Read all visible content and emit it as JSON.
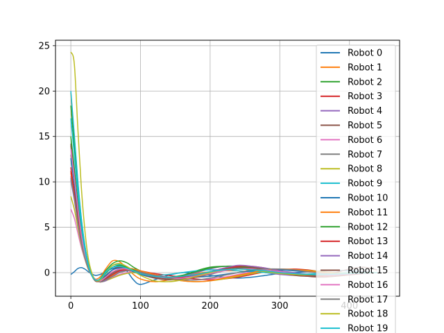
{
  "chart_data": {
    "type": "line",
    "title": "",
    "xlabel": "",
    "ylabel": "",
    "xlim": [
      -22,
      472
    ],
    "ylim": [
      -2.6,
      25.6
    ],
    "xticks": [
      0,
      100,
      200,
      300,
      400
    ],
    "yticks": [
      0,
      5,
      10,
      15,
      20,
      25
    ],
    "grid": true,
    "legend_position": "upper-right",
    "colors": [
      "#1f77b4",
      "#ff7f0e",
      "#2ca02c",
      "#d62728",
      "#9467bd",
      "#8c564b",
      "#e377c2",
      "#7f7f7f",
      "#bcbd22",
      "#17becf"
    ],
    "x": [
      0,
      5,
      10,
      15,
      20,
      25,
      30,
      35,
      40,
      45,
      50,
      60,
      70,
      80,
      90,
      100,
      120,
      140,
      160,
      180,
      200,
      220,
      240,
      260,
      280,
      300,
      320,
      340,
      360,
      380,
      400,
      420,
      440
    ],
    "series": [
      {
        "name": "Robot 0",
        "values": [
          -0.2,
          0.1,
          0.45,
          0.55,
          0.4,
          0.1,
          -0.15,
          -0.3,
          -0.25,
          -0.1,
          0.1,
          0.45,
          0.6,
          0.2,
          -0.8,
          -1.3,
          -0.8,
          -0.3,
          0.0,
          -0.1,
          -0.3,
          -0.5,
          -0.6,
          -0.5,
          -0.3,
          -0.1,
          0.0,
          0.1,
          0.2,
          0.25,
          0.2,
          0.1,
          0.0
        ]
      },
      {
        "name": "Robot 1",
        "values": [
          19.8,
          15.0,
          10.0,
          6.0,
          3.0,
          1.0,
          -0.3,
          -0.7,
          -0.6,
          -0.2,
          0.4,
          1.3,
          1.2,
          0.5,
          -0.2,
          -0.7,
          -1.0,
          -0.8,
          -0.4,
          -0.1,
          0.1,
          0.2,
          0.2,
          0.1,
          0.0,
          -0.1,
          -0.15,
          -0.2,
          -0.2,
          -0.15,
          -0.1,
          -0.05,
          0.0
        ]
      },
      {
        "name": "Robot 2",
        "values": [
          18.4,
          14.0,
          9.5,
          5.8,
          3.0,
          1.0,
          -0.2,
          -0.8,
          -0.8,
          -0.4,
          0.2,
          1.0,
          1.3,
          1.1,
          0.6,
          0.2,
          -0.3,
          -0.5,
          -0.3,
          0.2,
          0.6,
          0.7,
          0.6,
          0.4,
          0.2,
          0.0,
          -0.15,
          -0.25,
          -0.3,
          -0.25,
          -0.15,
          -0.05,
          0.0
        ]
      },
      {
        "name": "Robot 3",
        "values": [
          11.6,
          9.0,
          6.2,
          3.8,
          2.0,
          0.6,
          -0.3,
          -0.8,
          -1.0,
          -0.9,
          -0.6,
          0.0,
          0.4,
          0.5,
          0.4,
          0.2,
          -0.1,
          -0.3,
          -0.5,
          -0.7,
          -0.8,
          -0.7,
          -0.5,
          -0.2,
          0.1,
          0.3,
          0.4,
          0.3,
          0.1,
          0.0,
          -0.1,
          -0.05,
          0.0
        ]
      },
      {
        "name": "Robot 4",
        "values": [
          10.6,
          8.3,
          5.8,
          3.5,
          1.8,
          0.5,
          -0.3,
          -0.8,
          -1.0,
          -1.0,
          -0.8,
          -0.3,
          0.1,
          0.3,
          0.2,
          -0.1,
          -0.4,
          -0.5,
          -0.4,
          0.0,
          0.4,
          0.7,
          0.6,
          0.3,
          0.0,
          -0.2,
          -0.3,
          -0.25,
          -0.15,
          -0.05,
          0.0,
          0.05,
          0.0
        ]
      },
      {
        "name": "Robot 5",
        "values": [
          14.2,
          11.0,
          7.5,
          4.5,
          2.3,
          0.7,
          -0.3,
          -0.9,
          -1.0,
          -0.8,
          -0.4,
          0.3,
          0.6,
          0.5,
          0.2,
          -0.2,
          -0.6,
          -0.8,
          -0.7,
          -0.4,
          0.0,
          0.4,
          0.6,
          0.6,
          0.4,
          0.1,
          -0.2,
          -0.4,
          -0.5,
          -0.4,
          -0.25,
          -0.1,
          0.0
        ]
      },
      {
        "name": "Robot 6",
        "values": [
          7.0,
          6.0,
          4.4,
          2.8,
          1.5,
          0.4,
          -0.3,
          -0.7,
          -0.9,
          -0.9,
          -0.8,
          -0.5,
          -0.2,
          0.0,
          0.1,
          0.1,
          -0.2,
          -0.5,
          -0.7,
          -0.8,
          -0.7,
          -0.5,
          -0.2,
          0.1,
          0.3,
          0.35,
          0.3,
          0.15,
          0.0,
          -0.1,
          -0.1,
          -0.05,
          0.0
        ]
      },
      {
        "name": "Robot 7",
        "values": [
          13.0,
          10.0,
          6.8,
          4.0,
          2.0,
          0.6,
          -0.3,
          -0.8,
          -1.0,
          -0.9,
          -0.6,
          -0.1,
          0.3,
          0.4,
          0.3,
          0.1,
          -0.3,
          -0.6,
          -0.7,
          -0.5,
          -0.2,
          0.2,
          0.4,
          0.4,
          0.2,
          0.0,
          -0.2,
          -0.3,
          -0.3,
          -0.2,
          -0.1,
          0.0,
          0.0
        ]
      },
      {
        "name": "Robot 8",
        "values": [
          8.4,
          7.0,
          5.0,
          3.1,
          1.6,
          0.4,
          -0.3,
          -0.8,
          -1.0,
          -1.0,
          -0.9,
          -0.6,
          -0.3,
          -0.1,
          0.0,
          -0.1,
          -0.4,
          -0.7,
          -0.9,
          -1.0,
          -0.9,
          -0.7,
          -0.4,
          -0.1,
          0.1,
          0.25,
          0.3,
          0.25,
          0.1,
          0.0,
          -0.05,
          -0.05,
          0.0
        ]
      },
      {
        "name": "Robot 9",
        "values": [
          20.0,
          15.2,
          10.2,
          6.1,
          3.1,
          1.0,
          -0.2,
          -0.8,
          -0.9,
          -0.5,
          0.1,
          0.8,
          0.9,
          0.6,
          0.2,
          -0.1,
          -0.3,
          -0.2,
          0.0,
          0.2,
          0.3,
          0.3,
          0.2,
          0.1,
          0.0,
          -0.1,
          -0.15,
          -0.15,
          -0.1,
          -0.05,
          0.0,
          0.0,
          0.0
        ]
      },
      {
        "name": "Robot 10",
        "values": [
          12.6,
          9.8,
          6.7,
          4.0,
          2.0,
          0.6,
          -0.3,
          -0.8,
          -0.9,
          -0.7,
          -0.3,
          0.3,
          0.5,
          0.4,
          0.1,
          -0.2,
          -0.5,
          -0.6,
          -0.6,
          -0.5,
          -0.4,
          -0.2,
          0.0,
          0.2,
          0.3,
          0.3,
          0.2,
          0.1,
          0.0,
          -0.1,
          -0.1,
          -0.05,
          0.0
        ]
      },
      {
        "name": "Robot 11",
        "values": [
          11.0,
          8.6,
          5.9,
          3.6,
          1.8,
          0.5,
          -0.3,
          -0.8,
          -1.0,
          -1.0,
          -0.8,
          -0.3,
          0.2,
          0.4,
          0.4,
          0.2,
          -0.2,
          -0.6,
          -0.9,
          -1.0,
          -0.9,
          -0.6,
          -0.3,
          0.0,
          0.3,
          0.4,
          0.35,
          0.2,
          0.05,
          -0.05,
          -0.1,
          -0.05,
          0.0
        ]
      },
      {
        "name": "Robot 12",
        "values": [
          15.0,
          11.5,
          7.8,
          4.6,
          2.3,
          0.7,
          -0.3,
          -0.9,
          -0.9,
          -0.6,
          -0.1,
          0.6,
          0.8,
          0.6,
          0.3,
          0.0,
          -0.4,
          -0.5,
          -0.3,
          0.1,
          0.5,
          0.7,
          0.7,
          0.5,
          0.3,
          0.1,
          -0.1,
          -0.2,
          -0.25,
          -0.2,
          -0.1,
          -0.05,
          0.0
        ]
      },
      {
        "name": "Robot 13",
        "values": [
          11.2,
          8.8,
          6.0,
          3.6,
          1.8,
          0.5,
          -0.3,
          -0.8,
          -1.0,
          -1.0,
          -0.7,
          -0.2,
          0.2,
          0.3,
          0.2,
          0.0,
          -0.3,
          -0.5,
          -0.5,
          -0.3,
          0.1,
          0.5,
          0.7,
          0.7,
          0.5,
          0.2,
          -0.1,
          -0.3,
          -0.4,
          -0.3,
          -0.2,
          -0.1,
          0.0
        ]
      },
      {
        "name": "Robot 14",
        "values": [
          10.2,
          8.0,
          5.5,
          3.3,
          1.7,
          0.5,
          -0.3,
          -0.8,
          -1.0,
          -1.0,
          -0.9,
          -0.4,
          0.0,
          0.2,
          0.2,
          0.0,
          -0.3,
          -0.6,
          -0.6,
          -0.3,
          0.1,
          0.5,
          0.8,
          0.7,
          0.5,
          0.2,
          0.0,
          -0.2,
          -0.3,
          -0.25,
          -0.15,
          -0.05,
          0.0
        ]
      },
      {
        "name": "Robot 15",
        "values": [
          14.0,
          10.8,
          7.3,
          4.3,
          2.1,
          0.6,
          -0.3,
          -0.9,
          -1.0,
          -0.9,
          -0.6,
          0.0,
          0.4,
          0.4,
          0.2,
          -0.1,
          -0.5,
          -0.7,
          -0.7,
          -0.5,
          -0.1,
          0.3,
          0.5,
          0.5,
          0.3,
          0.0,
          -0.3,
          -0.4,
          -0.3,
          0.0,
          0.4,
          0.6,
          0.3
        ]
      },
      {
        "name": "Robot 16",
        "values": [
          13.6,
          10.5,
          7.1,
          4.2,
          2.1,
          0.6,
          -0.3,
          -0.8,
          -1.0,
          -0.8,
          -0.5,
          0.1,
          0.4,
          0.4,
          0.2,
          -0.1,
          -0.4,
          -0.6,
          -0.6,
          -0.4,
          -0.1,
          0.2,
          0.4,
          0.4,
          0.3,
          0.1,
          -0.1,
          -0.2,
          -0.2,
          -0.15,
          -0.1,
          -0.05,
          0.0
        ]
      },
      {
        "name": "Robot 17",
        "values": [
          10.4,
          8.2,
          5.6,
          3.4,
          1.7,
          0.5,
          -0.3,
          -0.8,
          -1.0,
          -1.0,
          -0.8,
          -0.4,
          0.0,
          0.2,
          0.2,
          0.0,
          -0.3,
          -0.6,
          -0.8,
          -0.8,
          -0.6,
          -0.3,
          0.0,
          0.3,
          0.4,
          0.4,
          0.3,
          0.1,
          -0.05,
          -0.1,
          -0.1,
          -0.05,
          0.0
        ]
      },
      {
        "name": "Robot 18",
        "values": [
          24.3,
          23.0,
          16.0,
          9.5,
          4.8,
          1.6,
          0.0,
          -0.8,
          -0.9,
          -0.6,
          0.0,
          0.8,
          1.0,
          0.7,
          0.2,
          -0.3,
          -0.9,
          -1.0,
          -0.8,
          -0.4,
          0.0,
          0.3,
          0.4,
          0.3,
          0.1,
          -0.1,
          -0.2,
          -0.25,
          -0.2,
          -0.1,
          -0.05,
          0.0,
          0.0
        ]
      },
      {
        "name": "Robot 19",
        "values": [
          17.0,
          13.0,
          8.8,
          5.2,
          2.6,
          0.8,
          -0.3,
          -0.8,
          -0.8,
          -0.5,
          0.0,
          0.6,
          0.7,
          0.5,
          0.2,
          -0.1,
          -0.4,
          -0.5,
          -0.4,
          -0.2,
          0.1,
          0.3,
          0.4,
          0.3,
          0.2,
          0.0,
          -0.1,
          -0.2,
          -0.2,
          -0.15,
          -0.1,
          -0.05,
          0.0
        ]
      }
    ]
  }
}
